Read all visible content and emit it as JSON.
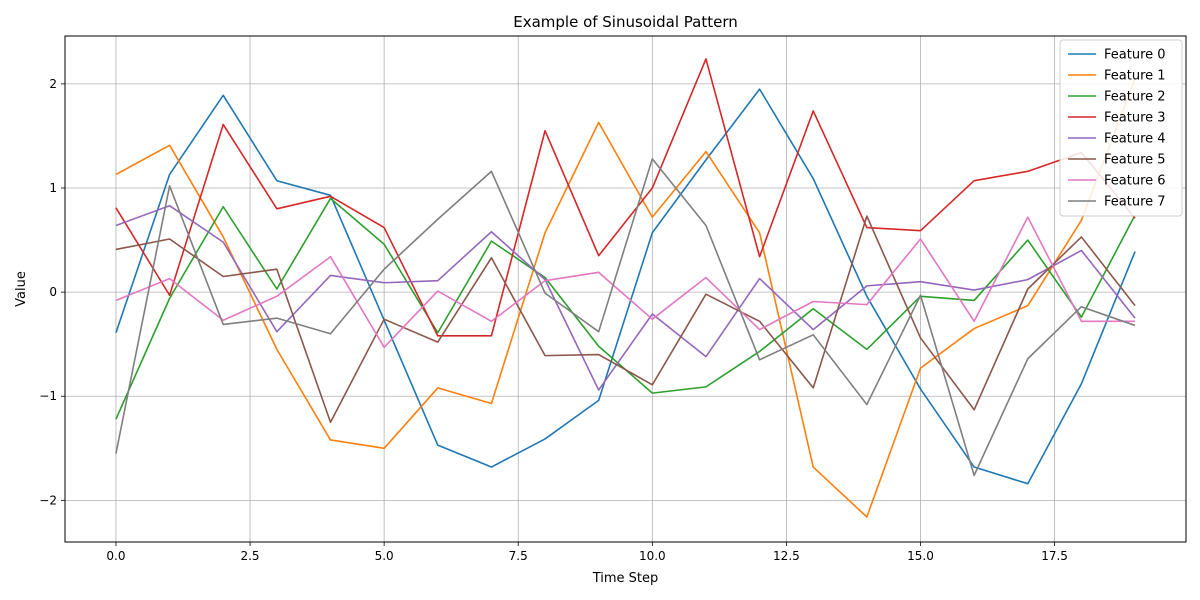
{
  "chart_data": {
    "type": "line",
    "title": "Example of Sinusoidal Pattern",
    "xlabel": "Time Step",
    "ylabel": "Value",
    "xlim": [
      -0.95,
      19.95
    ],
    "ylim": [
      -2.4,
      2.46
    ],
    "xticks": [
      0.0,
      2.5,
      5.0,
      7.5,
      10.0,
      12.5,
      15.0,
      17.5
    ],
    "xtick_labels": [
      "0.0",
      "2.5",
      "5.0",
      "7.5",
      "10.0",
      "12.5",
      "15.0",
      "17.5"
    ],
    "yticks": [
      -2,
      -1,
      0,
      1,
      2
    ],
    "ytick_labels": [
      "−2",
      "−1",
      "0",
      "1",
      "2"
    ],
    "grid": true,
    "legend_position": "top-right",
    "x": [
      0,
      1,
      2,
      3,
      4,
      5,
      6,
      7,
      8,
      9,
      10,
      11,
      12,
      13,
      14,
      15,
      16,
      17,
      18,
      19
    ],
    "series": [
      {
        "name": "Feature 0",
        "color": "#1f77b4",
        "values": [
          -0.39,
          1.13,
          1.89,
          1.07,
          0.93,
          -0.27,
          -1.47,
          -1.68,
          -1.41,
          -1.04,
          0.57,
          1.27,
          1.95,
          1.09,
          -0.04,
          -0.93,
          -1.68,
          -1.84,
          -0.88,
          0.39
        ]
      },
      {
        "name": "Feature 1",
        "color": "#ff7f0e",
        "values": [
          1.13,
          1.41,
          0.53,
          -0.55,
          -1.42,
          -1.5,
          -0.92,
          -1.07,
          0.57,
          1.63,
          0.72,
          1.35,
          0.57,
          -1.68,
          -2.16,
          -0.73,
          -0.35,
          -0.13,
          0.69,
          2.05
        ]
      },
      {
        "name": "Feature 2",
        "color": "#2ca02c",
        "values": [
          -1.22,
          -0.06,
          0.82,
          0.03,
          0.9,
          0.46,
          -0.39,
          0.49,
          0.14,
          -0.52,
          -0.97,
          -0.91,
          -0.57,
          -0.16,
          -0.55,
          -0.04,
          -0.08,
          0.5,
          -0.24,
          0.74
        ]
      },
      {
        "name": "Feature 3",
        "color": "#d62728",
        "values": [
          0.81,
          -0.03,
          1.61,
          0.8,
          0.92,
          0.62,
          -0.42,
          -0.42,
          1.55,
          0.35,
          1.0,
          2.24,
          0.34,
          1.74,
          0.62,
          0.59,
          1.07,
          1.16,
          1.34,
          0.71
        ]
      },
      {
        "name": "Feature 4",
        "color": "#9467bd",
        "values": [
          0.64,
          0.83,
          0.48,
          -0.38,
          0.16,
          0.09,
          0.11,
          0.58,
          0.12,
          -0.94,
          -0.21,
          -0.62,
          0.13,
          -0.36,
          0.06,
          0.1,
          0.02,
          0.12,
          0.4,
          -0.25
        ]
      },
      {
        "name": "Feature 5",
        "color": "#8c564b",
        "values": [
          0.41,
          0.51,
          0.15,
          0.22,
          -1.25,
          -0.26,
          -0.48,
          0.33,
          -0.61,
          -0.6,
          -0.89,
          -0.02,
          -0.28,
          -0.92,
          0.73,
          -0.44,
          -1.13,
          0.03,
          0.53,
          -0.13
        ]
      },
      {
        "name": "Feature 6",
        "color": "#e377c2",
        "values": [
          -0.08,
          0.13,
          -0.27,
          -0.04,
          0.34,
          -0.53,
          0.01,
          -0.28,
          0.11,
          0.19,
          -0.26,
          0.14,
          -0.36,
          -0.09,
          -0.12,
          0.51,
          -0.28,
          0.72,
          -0.28,
          -0.28
        ]
      },
      {
        "name": "Feature 7",
        "color": "#7f7f7f",
        "values": [
          -1.55,
          1.02,
          -0.31,
          -0.25,
          -0.4,
          0.22,
          0.7,
          1.16,
          -0.01,
          -0.38,
          1.28,
          0.64,
          -0.65,
          -0.41,
          -1.08,
          -0.03,
          -1.76,
          -0.64,
          -0.14,
          -0.32
        ]
      }
    ]
  }
}
